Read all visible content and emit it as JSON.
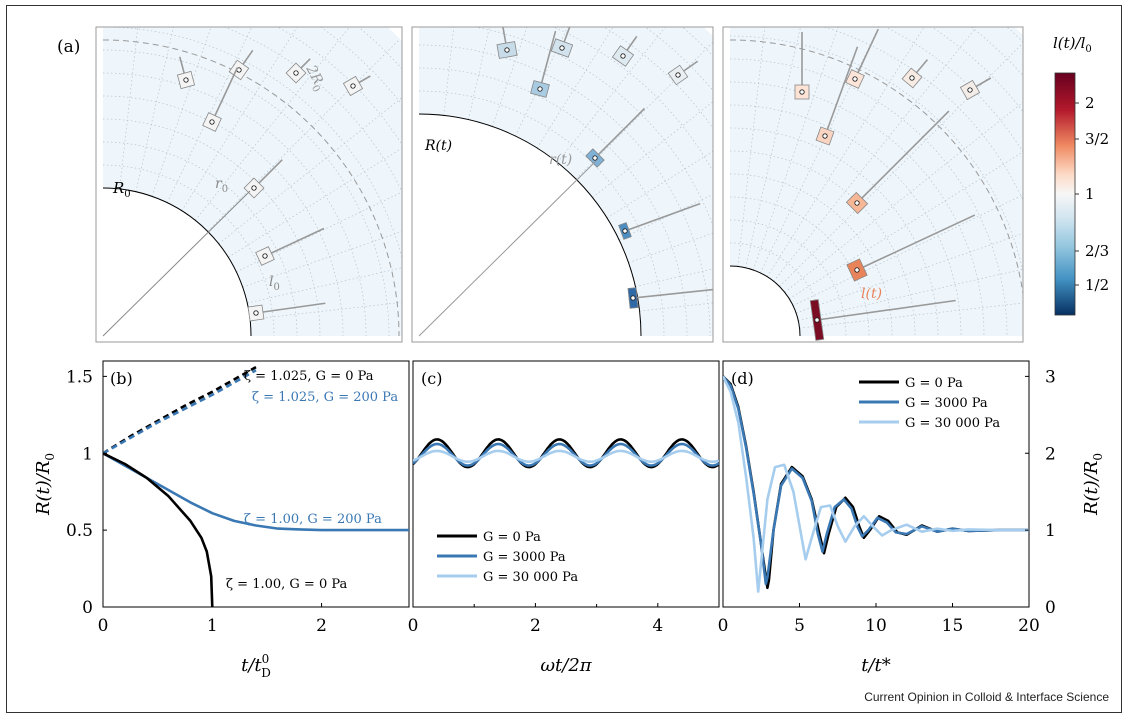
{
  "figure": {
    "footer": "Current Opinion in Colloid & Interface Science",
    "panel_a": {
      "label": "(a)",
      "left": {
        "R_label": "R",
        "R_sub": "0",
        "r_label": "r",
        "r_sub": "0",
        "l_label": "l",
        "l_sub": "0",
        "dashed_label": "2R",
        "dashed_sub": "0"
      },
      "middle": {
        "R_label": "R(t)",
        "r_label": "r(t)"
      },
      "right": {
        "l_label": "l(t)"
      },
      "colorbar": {
        "title": "l(t)/l",
        "title_sub": "0",
        "ticks": [
          "2",
          "3/2",
          "1",
          "2/3",
          "1/2"
        ],
        "colors": {
          "high": "#67001f",
          "mid": "#f7f7f7",
          "low": "#053061"
        }
      }
    },
    "colors": {
      "black": "#000000",
      "blue_dark": "#3a78b4",
      "blue_light": "#a6cdee",
      "ring_fill": "#eaf4fb",
      "grey": "#999999"
    }
  },
  "chart_data": [
    {
      "id": "b",
      "type": "line",
      "panel_label": "(b)",
      "xlabel": "t/t",
      "xlabel_sup": "0",
      "xlabel_sub": "D",
      "ylabel": "R(t)/R",
      "ylabel_sub": "0",
      "xlim": [
        0,
        2.8
      ],
      "ylim": [
        0,
        1.6
      ],
      "xticks": [
        "0",
        "1",
        "2"
      ],
      "yticks": [
        "0",
        "0.5",
        "1",
        "1.5"
      ],
      "series": [
        {
          "name": "ζ = 1.025, G = 0 Pa",
          "style": "dashed",
          "color": "#000000",
          "x": [
            0,
            0.25,
            0.5,
            0.75,
            1.0,
            1.25,
            1.4
          ],
          "y": [
            1.0,
            1.11,
            1.21,
            1.31,
            1.4,
            1.5,
            1.56
          ]
        },
        {
          "name": "ζ = 1.025, G = 200 Pa",
          "style": "dashed",
          "color": "#3a78b4",
          "x": [
            0,
            0.25,
            0.5,
            0.75,
            1.0,
            1.25,
            1.4
          ],
          "y": [
            1.0,
            1.1,
            1.2,
            1.29,
            1.38,
            1.48,
            1.54
          ]
        },
        {
          "name": "ζ = 1.00, G = 200 Pa",
          "style": "solid",
          "color": "#3a78b4",
          "x": [
            0,
            0.2,
            0.4,
            0.6,
            0.8,
            1.0,
            1.2,
            1.4,
            1.6,
            1.8,
            2.0,
            2.4,
            2.8
          ],
          "y": [
            1.0,
            0.92,
            0.84,
            0.76,
            0.68,
            0.61,
            0.56,
            0.53,
            0.51,
            0.505,
            0.5,
            0.5,
            0.5
          ]
        },
        {
          "name": "ζ = 1.00, G = 0 Pa",
          "style": "solid",
          "color": "#000000",
          "x": [
            0,
            0.2,
            0.4,
            0.6,
            0.8,
            0.9,
            0.95,
            0.99,
            1.0
          ],
          "y": [
            1.0,
            0.93,
            0.84,
            0.72,
            0.56,
            0.45,
            0.36,
            0.2,
            0.0
          ]
        }
      ]
    },
    {
      "id": "c",
      "type": "line",
      "panel_label": "(c)",
      "xlabel": "ωt/2π",
      "xlim": [
        0,
        5
      ],
      "ylim": [
        0,
        1.6
      ],
      "xticks": [
        "0",
        "2",
        "4"
      ],
      "legend": "lower-left",
      "series": [
        {
          "name": "G = 0 Pa",
          "color": "#000000",
          "amplitude": 0.09,
          "periods": 5
        },
        {
          "name": "G = 3000 Pa",
          "color": "#3a78b4",
          "amplitude": 0.07,
          "periods": 5
        },
        {
          "name": "G = 30 000 Pa",
          "color": "#a6cdee",
          "amplitude": 0.035,
          "periods": 5
        }
      ]
    },
    {
      "id": "d",
      "type": "line",
      "panel_label": "(d)",
      "xlabel": "t/t*",
      "ylabel": "R(t)/R",
      "ylabel_sub": "0",
      "xlim": [
        0,
        20
      ],
      "ylim": [
        0,
        3.2
      ],
      "xticks": [
        "0",
        "5",
        "10",
        "15",
        "20"
      ],
      "yticks": [
        "0",
        "1",
        "2",
        "3"
      ],
      "legend": "top",
      "series": [
        {
          "name": "G = 0 Pa",
          "color": "#000000",
          "x": [
            0,
            0.5,
            1,
            1.5,
            2,
            2.5,
            2.9,
            3.0,
            3.3,
            3.8,
            4.5,
            5.2,
            5.8,
            6.3,
            6.6,
            6.9,
            7.4,
            8.0,
            8.5,
            8.9,
            9.2,
            9.6,
            10.2,
            10.8,
            11.4,
            12,
            13,
            14,
            15,
            16,
            18,
            20
          ],
          "y": [
            3.0,
            2.9,
            2.6,
            2.1,
            1.5,
            0.8,
            0.25,
            0.35,
            1.0,
            1.6,
            1.82,
            1.7,
            1.4,
            0.95,
            0.7,
            0.95,
            1.3,
            1.42,
            1.3,
            1.05,
            0.9,
            1.0,
            1.18,
            1.12,
            0.97,
            0.94,
            1.06,
            0.98,
            1.02,
            0.99,
            1.0,
            1.0
          ]
        },
        {
          "name": "G = 3000 Pa",
          "color": "#3a78b4",
          "x": [
            0,
            0.5,
            1,
            1.5,
            2,
            2.5,
            2.8,
            2.9,
            3.3,
            3.8,
            4.5,
            5.2,
            5.8,
            6.2,
            6.5,
            6.8,
            7.3,
            7.9,
            8.4,
            8.8,
            9.1,
            9.5,
            10.1,
            10.7,
            11.3,
            12,
            13,
            14,
            15,
            16,
            18,
            20
          ],
          "y": [
            3.0,
            2.88,
            2.58,
            2.08,
            1.48,
            0.8,
            0.3,
            0.38,
            1.0,
            1.58,
            1.8,
            1.68,
            1.38,
            0.95,
            0.72,
            0.96,
            1.3,
            1.4,
            1.28,
            1.04,
            0.92,
            1.0,
            1.16,
            1.1,
            0.97,
            0.95,
            1.05,
            0.98,
            1.02,
            0.99,
            1.0,
            1.0
          ]
        },
        {
          "name": "G = 30 000 Pa",
          "color": "#a6cdee",
          "x": [
            0,
            0.5,
            1,
            1.5,
            2,
            2.3,
            2.5,
            2.9,
            3.4,
            4.0,
            4.6,
            5.1,
            5.4,
            5.8,
            6.4,
            7.0,
            7.5,
            8.0,
            8.6,
            9.2,
            9.8,
            10.4,
            11,
            12,
            13,
            14,
            15,
            16,
            18,
            20
          ],
          "y": [
            3.0,
            2.8,
            2.4,
            1.7,
            0.9,
            0.2,
            0.6,
            1.4,
            1.82,
            1.85,
            1.5,
            0.95,
            0.62,
            0.9,
            1.3,
            1.32,
            1.05,
            0.85,
            1.05,
            1.18,
            1.05,
            0.93,
            1.0,
            1.07,
            0.98,
            1.02,
            0.99,
            1.01,
            1.0,
            1.0
          ]
        }
      ]
    }
  ]
}
